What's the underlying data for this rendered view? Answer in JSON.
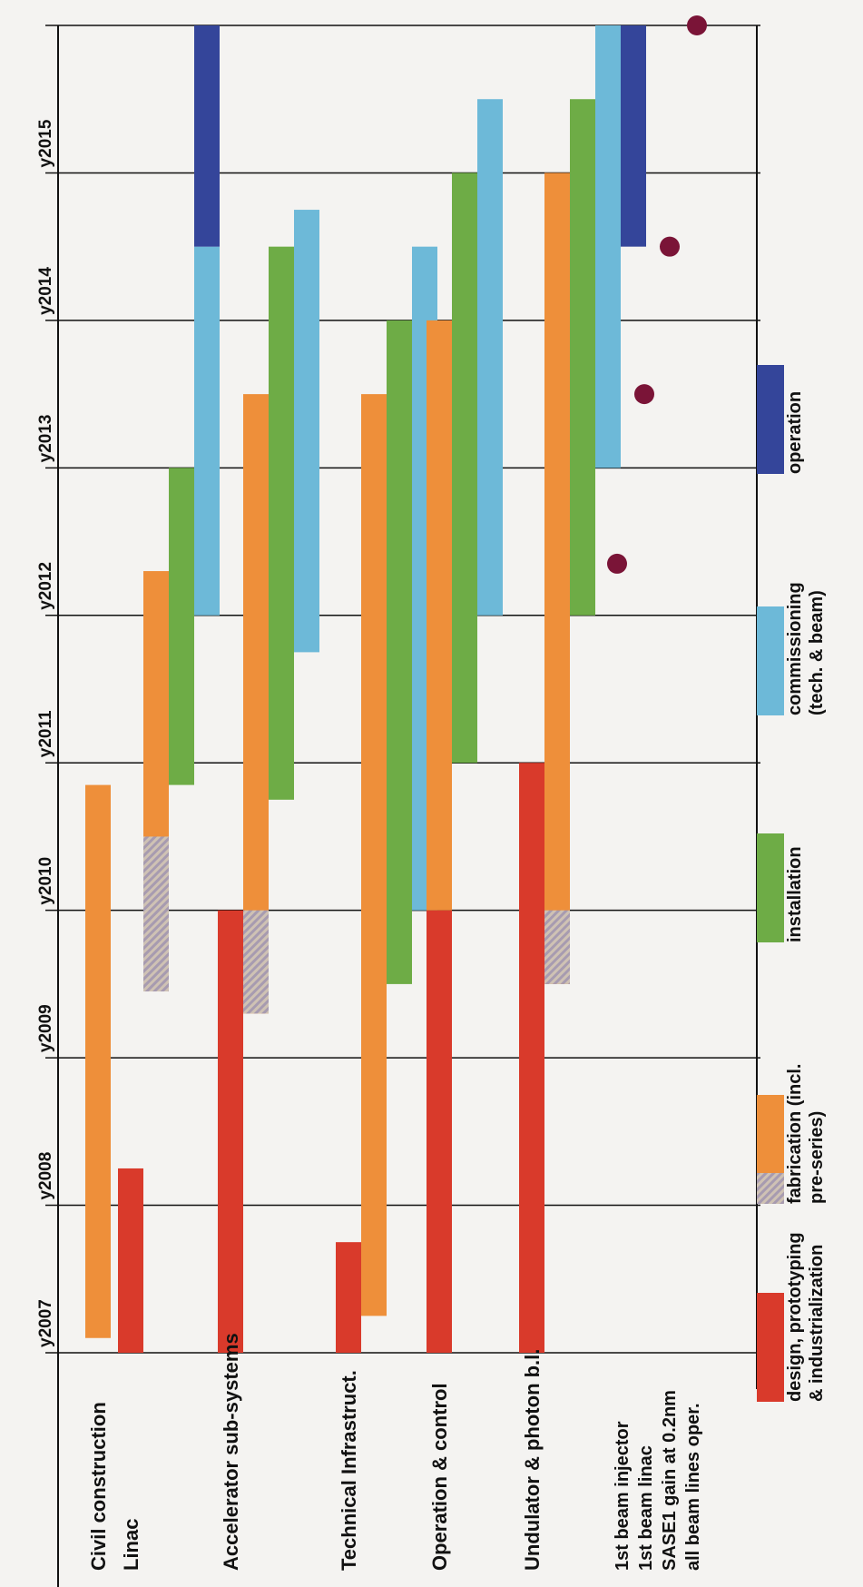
{
  "chart_data": {
    "type": "gantt",
    "years": [
      "y2007",
      "y2008",
      "y2009",
      "y2010",
      "y2011",
      "y2012",
      "y2013",
      "y2014",
      "y2015"
    ],
    "x_range": [
      2007.0,
      2016.0
    ],
    "phases": {
      "design": {
        "label": "design, prototyping & industrialization",
        "label_lines": [
          "design, prototyping",
          "& industrialization"
        ],
        "color": "#d93a2b"
      },
      "fabrication": {
        "label": "fabrication (incl. pre-series)",
        "label_lines": [
          "fabrication (incl.",
          "pre-series)"
        ],
        "color": "#ee8f3a",
        "preseries_color": "#9e93a6"
      },
      "installation": {
        "label": "installation",
        "label_lines": [
          "installation"
        ],
        "color": "#6eac46"
      },
      "commissioning": {
        "label": "commissioning (tech. & beam)",
        "label_lines": [
          "commissioning",
          "(tech. & beam)"
        ],
        "color": "#6db9d8"
      },
      "operation": {
        "label": "operation",
        "label_lines": [
          "operation"
        ],
        "color": "#34459a"
      }
    },
    "work_packages": [
      {
        "name": "Civil construction",
        "bars": [
          {
            "phase": "fabrication",
            "start": 2007.1,
            "end": 2010.85,
            "lane": 0
          }
        ]
      },
      {
        "name": "Linac",
        "bars": [
          {
            "phase": "design",
            "start": 2007.0,
            "end": 2008.25,
            "lane": 0
          },
          {
            "phase": "fabrication",
            "start": 2009.45,
            "end": 2012.3,
            "lane": 1,
            "preseries": [
              2009.45,
              2010.5
            ]
          },
          {
            "phase": "installation",
            "start": 2010.85,
            "end": 2013.0,
            "lane": 2
          },
          {
            "phase": "commissioning",
            "start": 2012.0,
            "end": 2014.5,
            "lane": 3
          },
          {
            "phase": "operation",
            "start": 2014.5,
            "end": 2016.0,
            "lane": 3
          }
        ]
      },
      {
        "name": "Accelerator sub-systems",
        "bars": [
          {
            "phase": "design",
            "start": 2007.0,
            "end": 2010.0,
            "lane": 0
          },
          {
            "phase": "fabrication",
            "start": 2009.3,
            "end": 2013.5,
            "lane": 1,
            "preseries": [
              2009.3,
              2010.0
            ]
          },
          {
            "phase": "installation",
            "start": 2010.75,
            "end": 2014.5,
            "lane": 2
          },
          {
            "phase": "commissioning",
            "start": 2011.75,
            "end": 2014.75,
            "lane": 3
          }
        ]
      },
      {
        "name": "Technical Infrastruct.",
        "bars": [
          {
            "phase": "design",
            "start": 2007.0,
            "end": 2007.75,
            "lane": 0
          },
          {
            "phase": "fabrication",
            "start": 2007.25,
            "end": 2013.5,
            "lane": 1
          },
          {
            "phase": "installation",
            "start": 2009.5,
            "end": 2014.0,
            "lane": 2
          },
          {
            "phase": "commissioning",
            "start": 2010.0,
            "end": 2014.5,
            "lane": 3
          }
        ]
      },
      {
        "name": "Operation & control",
        "bars": [
          {
            "phase": "design",
            "start": 2007.0,
            "end": 2010.0,
            "lane": 0
          },
          {
            "phase": "fabrication",
            "start": 2010.0,
            "end": 2014.0,
            "lane": 0
          },
          {
            "phase": "installation",
            "start": 2011.0,
            "end": 2015.0,
            "lane": 1
          },
          {
            "phase": "commissioning",
            "start": 2012.0,
            "end": 2015.5,
            "lane": 2
          }
        ]
      },
      {
        "name": "Undulator & photon b.l.",
        "bars": [
          {
            "phase": "design",
            "start": 2007.0,
            "end": 2011.0,
            "lane": 0
          },
          {
            "phase": "fabrication",
            "start": 2009.5,
            "end": 2015.0,
            "lane": 1,
            "preseries": [
              2009.5,
              2010.0
            ]
          },
          {
            "phase": "installation",
            "start": 2012.0,
            "end": 2015.5,
            "lane": 2
          },
          {
            "phase": "commissioning",
            "start": 2013.0,
            "end": 2016.0,
            "lane": 3
          },
          {
            "phase": "operation",
            "start": 2014.5,
            "end": 2016.0,
            "lane": 4
          }
        ]
      }
    ],
    "milestones": [
      {
        "name": "1st beam injector",
        "date": 2012.35
      },
      {
        "name": "1st beam linac",
        "date": 2013.5
      },
      {
        "name": "SASE1 gain at 0.2nm",
        "date": 2014.5
      },
      {
        "name": "all beam lines oper.",
        "date": 2016.0
      }
    ],
    "milestone_color": "#7a1437",
    "legend_order": [
      "design",
      "fabrication",
      "installation",
      "commissioning",
      "operation"
    ],
    "legend_placement": "bottom"
  }
}
